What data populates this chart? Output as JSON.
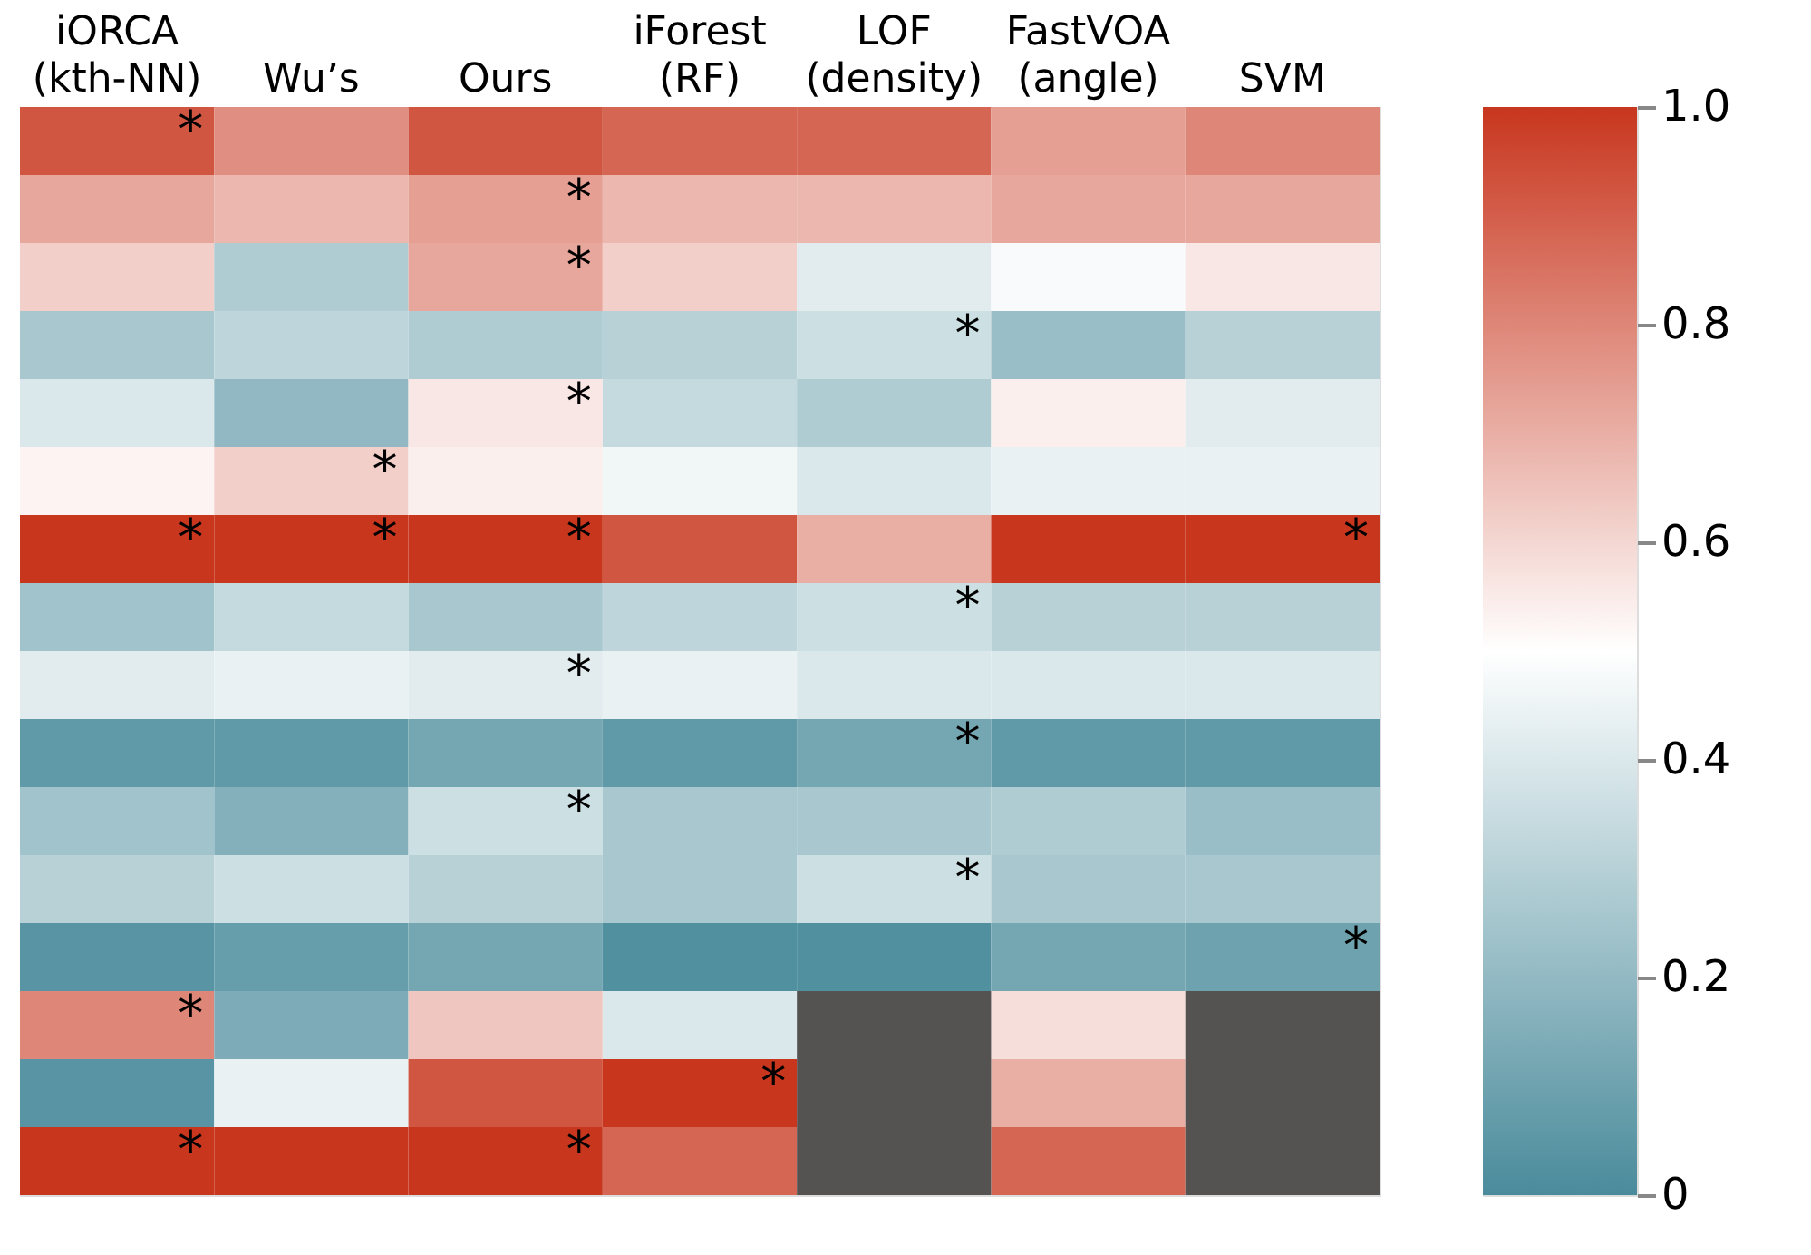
{
  "chart_data": {
    "type": "heatmap",
    "categories": [
      "iORCA\n(kth-NN)",
      "Wu’s",
      "Ours",
      "iForest\n(RF)",
      "LOF\n(density)",
      "FastVOA\n(angle)",
      "SVM"
    ],
    "y_categories": [
      null,
      null,
      null,
      null,
      null,
      null,
      null,
      null,
      null,
      null,
      null,
      null,
      null,
      null,
      null,
      null
    ],
    "cells": [
      [
        0.92,
        0.78,
        0.92,
        0.88,
        0.88,
        0.74,
        0.8
      ],
      [
        0.72,
        0.68,
        0.74,
        0.68,
        0.68,
        0.72,
        0.72
      ],
      [
        0.62,
        0.28,
        0.72,
        0.62,
        0.42,
        0.48,
        0.56
      ],
      [
        0.26,
        0.32,
        0.28,
        0.3,
        0.36,
        0.22,
        0.3
      ],
      [
        0.4,
        0.2,
        0.56,
        0.34,
        0.28,
        0.54,
        0.42
      ],
      [
        0.53,
        0.62,
        0.54,
        0.46,
        0.4,
        0.44,
        0.44
      ],
      [
        1.0,
        1.0,
        1.0,
        0.92,
        0.7,
        1.0,
        1.0
      ],
      [
        0.24,
        0.34,
        0.26,
        0.32,
        0.36,
        0.3,
        0.3
      ],
      [
        0.42,
        0.44,
        0.42,
        0.44,
        0.4,
        0.4,
        0.4
      ],
      [
        0.06,
        0.06,
        0.12,
        0.06,
        0.12,
        0.06,
        0.06
      ],
      [
        0.24,
        0.16,
        0.36,
        0.26,
        0.26,
        0.28,
        0.22
      ],
      [
        0.3,
        0.36,
        0.3,
        0.26,
        0.36,
        0.26,
        0.26
      ],
      [
        0.04,
        0.08,
        0.12,
        0.02,
        0.02,
        0.12,
        0.1
      ],
      [
        0.8,
        0.14,
        0.64,
        0.4,
        null,
        0.58,
        null
      ],
      [
        0.04,
        0.44,
        0.92,
        1.0,
        null,
        0.7,
        null
      ],
      [
        1.0,
        1.0,
        1.0,
        0.88,
        null,
        0.88,
        null
      ]
    ],
    "cell_labels": [
      [
        "*",
        null,
        null,
        null,
        null,
        null,
        null
      ],
      [
        null,
        null,
        "*",
        null,
        null,
        null,
        null
      ],
      [
        null,
        null,
        "*",
        null,
        null,
        null,
        null
      ],
      [
        null,
        null,
        null,
        null,
        "*",
        null,
        null
      ],
      [
        null,
        null,
        "*",
        null,
        null,
        null,
        null
      ],
      [
        null,
        "*",
        null,
        null,
        null,
        null,
        null
      ],
      [
        "*",
        "*",
        "*",
        null,
        null,
        null,
        "*"
      ],
      [
        null,
        null,
        null,
        null,
        "*",
        null,
        null
      ],
      [
        null,
        null,
        "*",
        null,
        null,
        null,
        null
      ],
      [
        null,
        null,
        null,
        null,
        "*",
        null,
        null
      ],
      [
        null,
        null,
        "*",
        null,
        null,
        null,
        null
      ],
      [
        null,
        null,
        null,
        null,
        "*",
        null,
        null
      ],
      [
        null,
        null,
        null,
        null,
        null,
        null,
        "*"
      ],
      [
        "*",
        null,
        null,
        null,
        null,
        null,
        null
      ],
      [
        null,
        null,
        null,
        "*",
        null,
        null,
        null
      ],
      [
        "*",
        null,
        "*",
        null,
        null,
        null,
        null
      ]
    ],
    "clim": [
      0,
      1
    ],
    "cticks": [
      0,
      0.2,
      0.4,
      0.6,
      0.8,
      {
        "value": 1,
        "label": "1.0"
      }
    ]
  }
}
